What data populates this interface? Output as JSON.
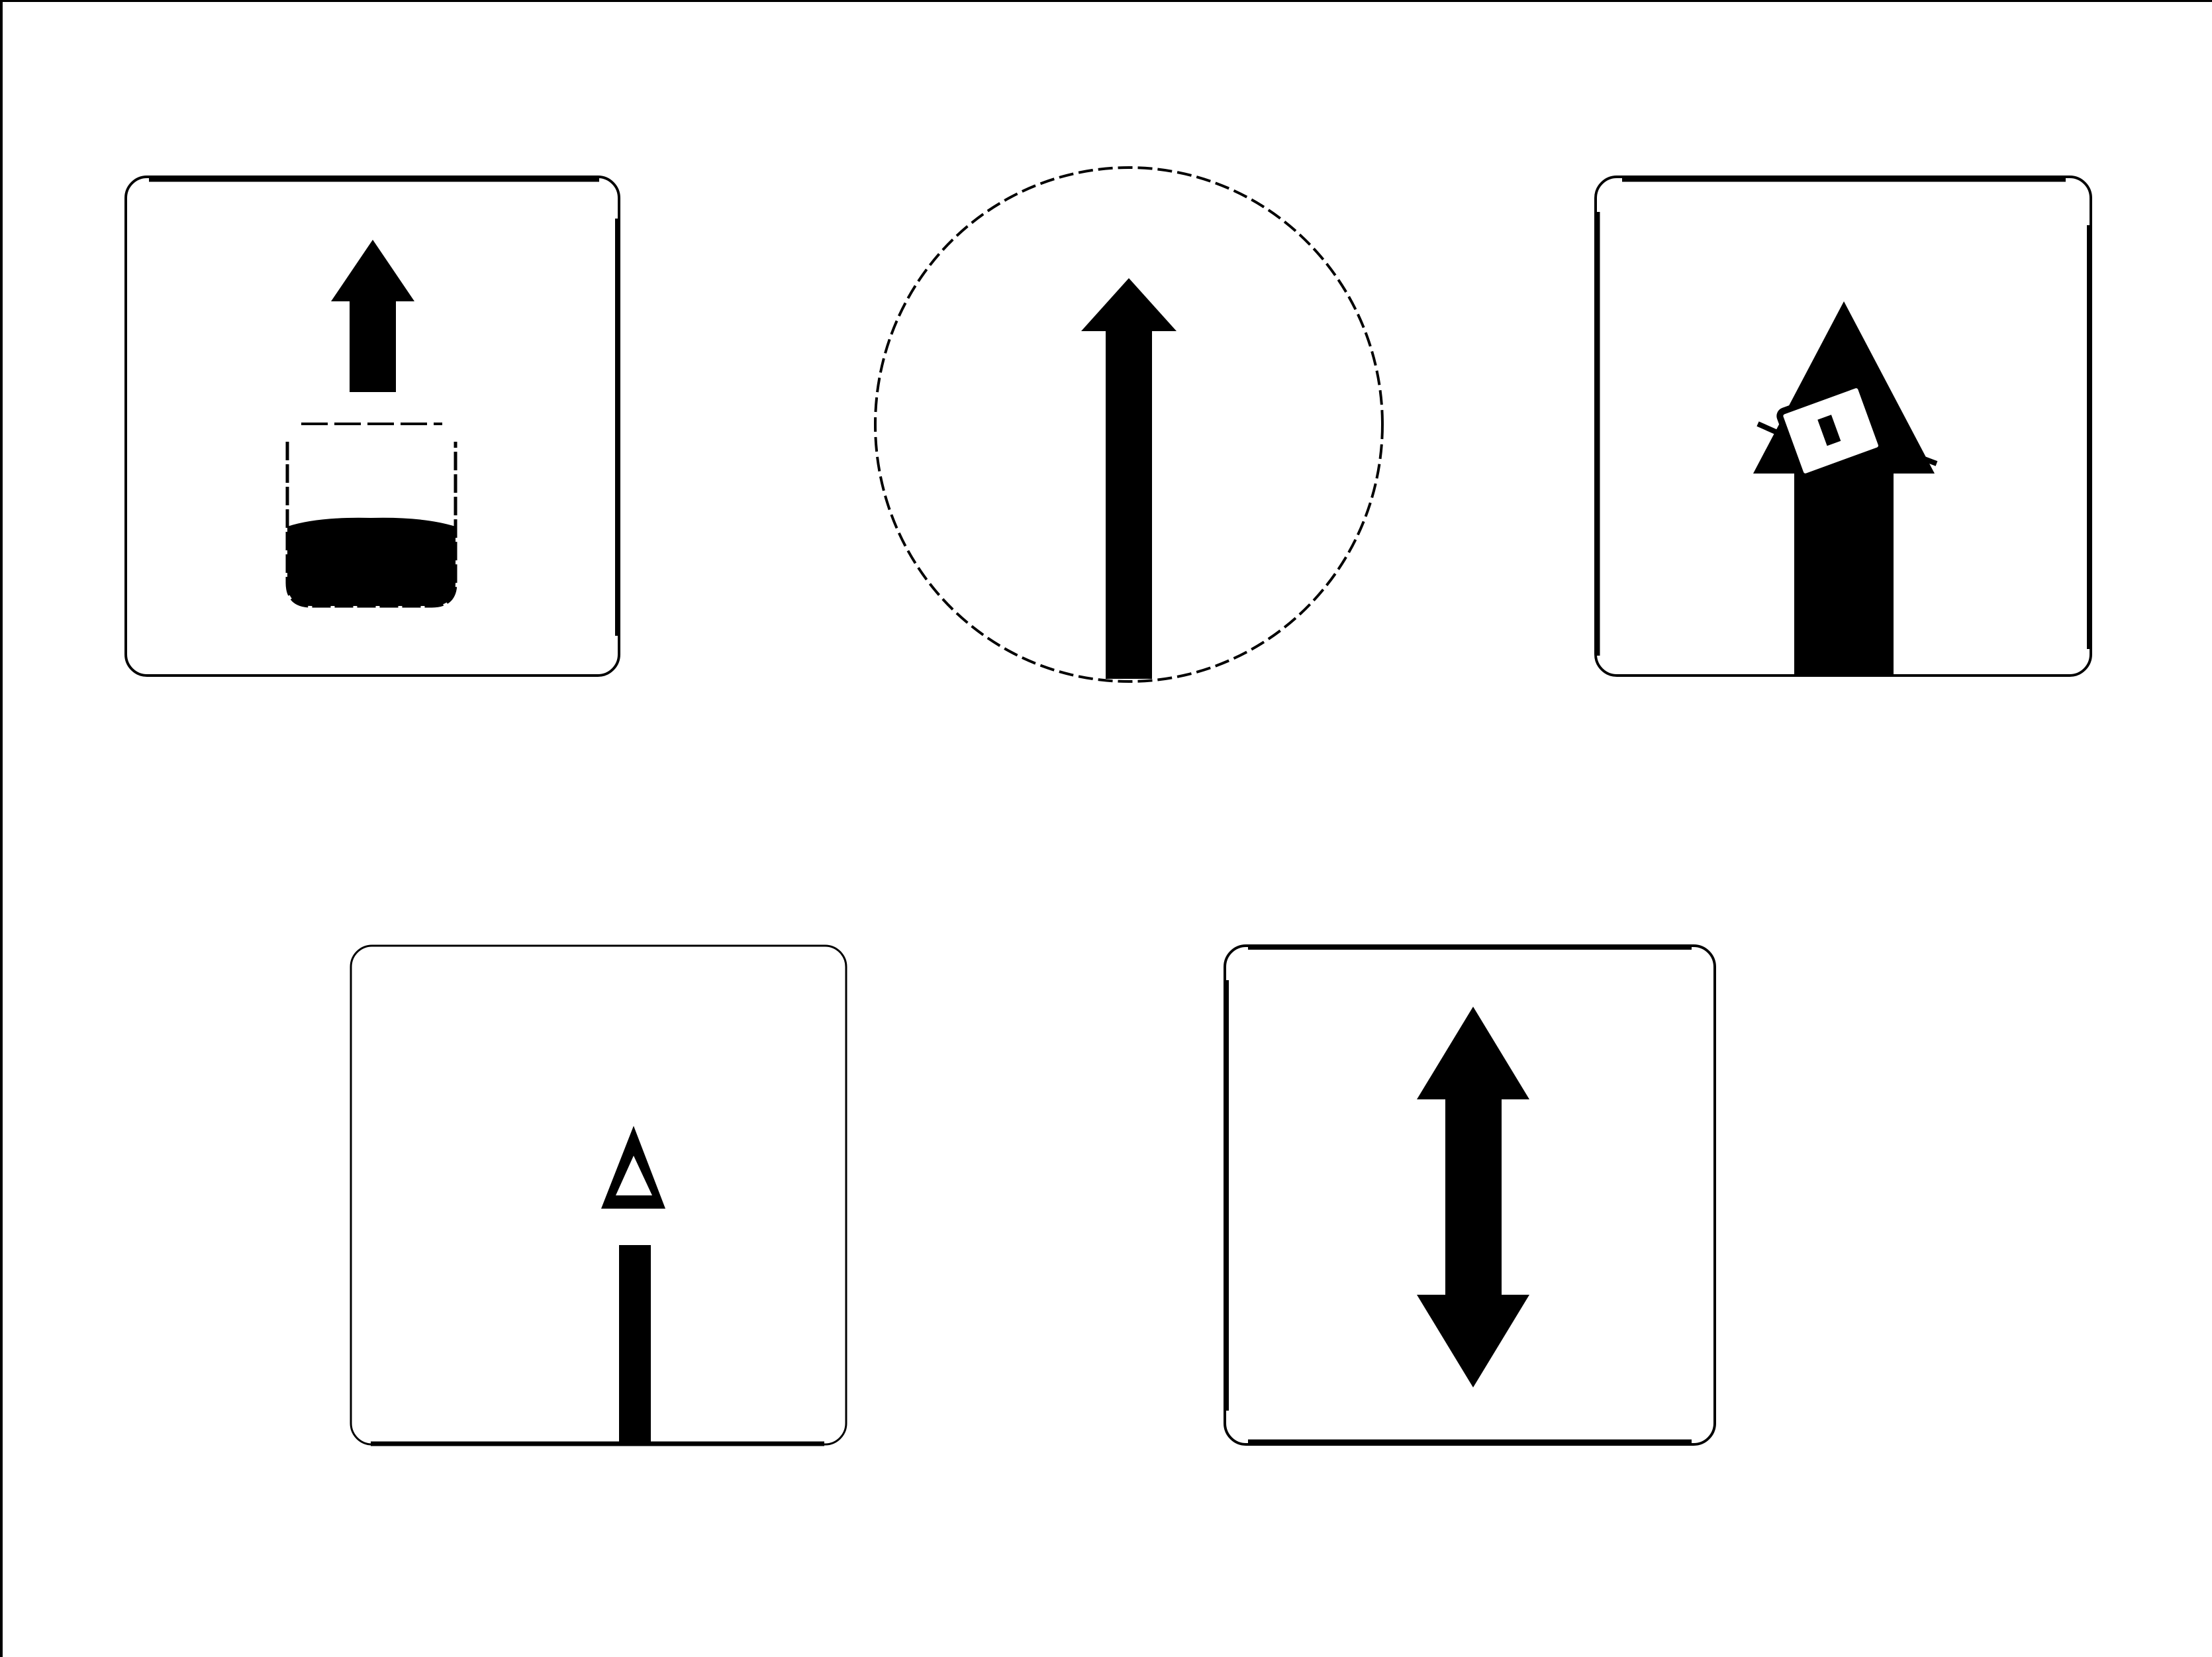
{
  "colors": {
    "ink": "#000000",
    "paper": "#ffffff"
  },
  "symbols": [
    {
      "id": "symbol-1",
      "frame": "rounded-square",
      "icon": "arrow-up-over-container-icon",
      "fill_level": 0.5
    },
    {
      "id": "symbol-2",
      "frame": "circle",
      "icon": "long-arrow-up-icon"
    },
    {
      "id": "symbol-3",
      "frame": "rounded-square",
      "icon": "arrow-up-with-tilted-block-icon"
    },
    {
      "id": "symbol-4",
      "frame": "rounded-square",
      "icon": "short-arrow-up-icon"
    },
    {
      "id": "symbol-5",
      "frame": "rounded-square",
      "icon": "double-arrow-vertical-icon"
    }
  ]
}
